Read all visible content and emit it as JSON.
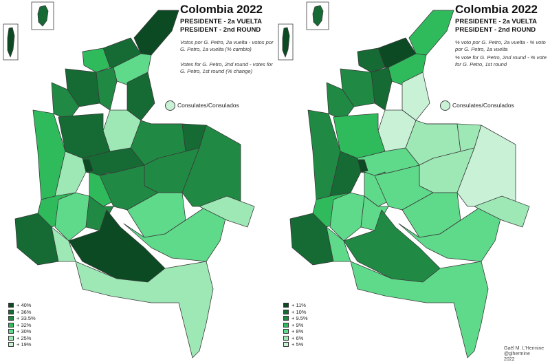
{
  "left": {
    "title": "Colombia 2022",
    "subtitle_1": "PRESIDENTE - 2a VUELTA",
    "subtitle_2": "PRESIDENT - 2nd ROUND",
    "description_es": "Votos por G. Petro, 2a vuelta - votos por G. Petro, 1a vuelta (% cambio)",
    "description_en": "Votes for G. Petro, 2nd round - votes for G. Petro, 1st round (% change)",
    "consulates_label": "Consulates/Consulados",
    "consulates_color": "#c9f1d6",
    "legend": [
      {
        "label": "+ 40%",
        "color": "#0b4a23"
      },
      {
        "label": "+ 36%",
        "color": "#156b33"
      },
      {
        "label": "+ 33.5%",
        "color": "#208a44"
      },
      {
        "label": "+ 32%",
        "color": "#2fbb5c"
      },
      {
        "label": "+ 30%",
        "color": "#5fd98a"
      },
      {
        "label": "+ 25%",
        "color": "#9ee8b6"
      },
      {
        "label": "+ 19%",
        "color": "#c9f1d6"
      }
    ]
  },
  "right": {
    "title": "Colombia 2022",
    "subtitle_1": "PRESIDENTE - 2a VUELTA",
    "subtitle_2": "PRESIDENT - 2nd ROUND",
    "description_es": "% voto por G. Petro, 2a vuelta - % voto por G. Petro, 1a vuelta",
    "description_en": "% vote for G. Petro, 2nd round - % vote for G. Petro, 1st round",
    "consulates_label": "Consulates/Consulados",
    "consulates_color": "#c9f1d6",
    "legend": [
      {
        "label": "+ 11%",
        "color": "#0b4a23"
      },
      {
        "label": "+ 10%",
        "color": "#156b33"
      },
      {
        "label": "+ 9.5%",
        "color": "#208a44"
      },
      {
        "label": "+ 9%",
        "color": "#2fbb5c"
      },
      {
        "label": "+ 8%",
        "color": "#5fd98a"
      },
      {
        "label": "+ 6%",
        "color": "#9ee8b6"
      },
      {
        "label": "+ 5%",
        "color": "#c9f1d6"
      }
    ]
  },
  "credit": {
    "line1": "Gaël M. L'Hermine",
    "line2": "@glhermine",
    "line3": "2022"
  }
}
